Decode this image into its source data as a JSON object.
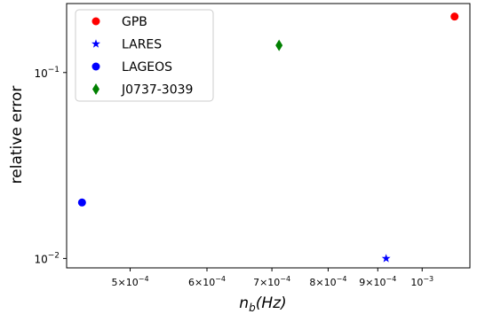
{
  "chart_data": {
    "type": "scatter",
    "xscale": "log",
    "yscale": "log",
    "xlim": [
      0.00043,
      0.00112
    ],
    "ylim": [
      0.0089,
      0.235
    ],
    "xlabel_base": "n",
    "xlabel_sub": "b",
    "xlabel_rest": "(Hz)",
    "ylabel": "relative error",
    "x_ticks": [
      {
        "value": 0.0005,
        "mant": "5",
        "exp": "−4"
      },
      {
        "value": 0.0006,
        "mant": "6",
        "exp": "−4"
      },
      {
        "value": 0.0007,
        "mant": "7",
        "exp": "−4"
      },
      {
        "value": 0.0008,
        "mant": "8",
        "exp": "−4"
      },
      {
        "value": 0.0009,
        "mant": "9",
        "exp": "−4"
      },
      {
        "value": 0.001,
        "mant": "",
        "exp": "−3"
      }
    ],
    "y_ticks": [
      {
        "value": 0.01,
        "base": "10",
        "exp": "−2"
      },
      {
        "value": 0.1,
        "base": "10",
        "exp": "−1"
      }
    ],
    "legend_position": "upper-left",
    "series": [
      {
        "name": "GPB",
        "marker": "circle",
        "color": "#ff0000",
        "points": [
          {
            "x": 0.00108,
            "y": 0.2
          }
        ]
      },
      {
        "name": "LARES",
        "marker": "star",
        "color": "#0000ff",
        "points": [
          {
            "x": 0.000918,
            "y": 0.01
          }
        ]
      },
      {
        "name": "LAGEOS",
        "marker": "circle",
        "color": "#0000ff",
        "points": [
          {
            "x": 0.000446,
            "y": 0.02
          }
        ]
      },
      {
        "name": "J0737-3039",
        "marker": "diamond",
        "color": "#008000",
        "points": [
          {
            "x": 0.000712,
            "y": 0.14
          }
        ]
      }
    ]
  }
}
